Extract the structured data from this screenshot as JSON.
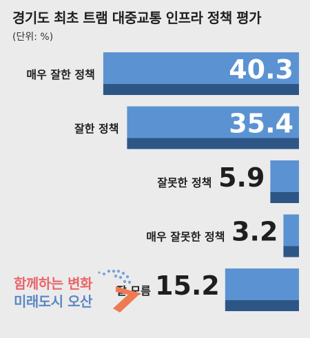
{
  "header": {
    "title": "경기도 최초 트램 대중교통 인프라 정책 평가",
    "unit": "(단위: %)"
  },
  "logo": {
    "line1": "함께하는 변화",
    "line2": "미래도시 오산"
  },
  "colors": {
    "bar_top": "#5b93d2",
    "bar_bottom": "#2d5686",
    "background": "#ebebeb",
    "text": "#1e1e1e",
    "logo_red": "#e9666a",
    "logo_blue": "#5b87c5"
  },
  "chart_data": {
    "type": "bar",
    "orientation": "horizontal",
    "categories": [
      "매우 잘한 정책",
      "잘한 정책",
      "잘못한 정책",
      "매우 잘못한 정책",
      "잘 모름"
    ],
    "values": [
      40.3,
      35.4,
      5.9,
      3.2,
      15.2
    ],
    "value_labels": [
      "40.3",
      "35.4",
      "5.9",
      "3.2",
      "15.2"
    ],
    "title": "경기도 최초 트램 대중교통 인프라 정책 평가",
    "unit": "(단위: %)",
    "xlim": [
      0,
      45
    ],
    "bar_alignment": "right",
    "grid": false,
    "legend": "none"
  }
}
